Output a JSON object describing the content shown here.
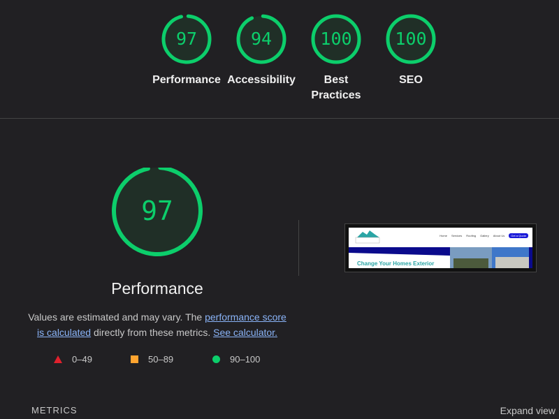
{
  "summary": [
    {
      "label": "Performance",
      "score": 97
    },
    {
      "label": "Accessibility",
      "score": 94
    },
    {
      "label": "Best Practices",
      "score": 100
    },
    {
      "label": "SEO",
      "score": 100
    }
  ],
  "main": {
    "score": 97,
    "title": "Performance",
    "desc_prefix": "Values are estimated and may vary. The ",
    "desc_link": "performance score is calculated",
    "desc_mid": " directly from these metrics. ",
    "desc_calc": "See calculator."
  },
  "legend": [
    {
      "icon": "triangle",
      "range": "0–49",
      "color": "#e0212d"
    },
    {
      "icon": "square",
      "range": "50–89",
      "color": "#ffa42f"
    },
    {
      "icon": "circle",
      "range": "90–100",
      "color": "#0cce6b"
    }
  ],
  "thumbnail": {
    "nav": [
      "Home",
      "Services",
      "Roofing",
      "Gallery",
      "About Us"
    ],
    "cta": "Get a Quote",
    "headline": "Change Your Homes Exterior"
  },
  "footer": {
    "metrics": "METRICS",
    "expand": "Expand view"
  },
  "colors": {
    "pass": "#0cce6b",
    "background": "#212023"
  }
}
